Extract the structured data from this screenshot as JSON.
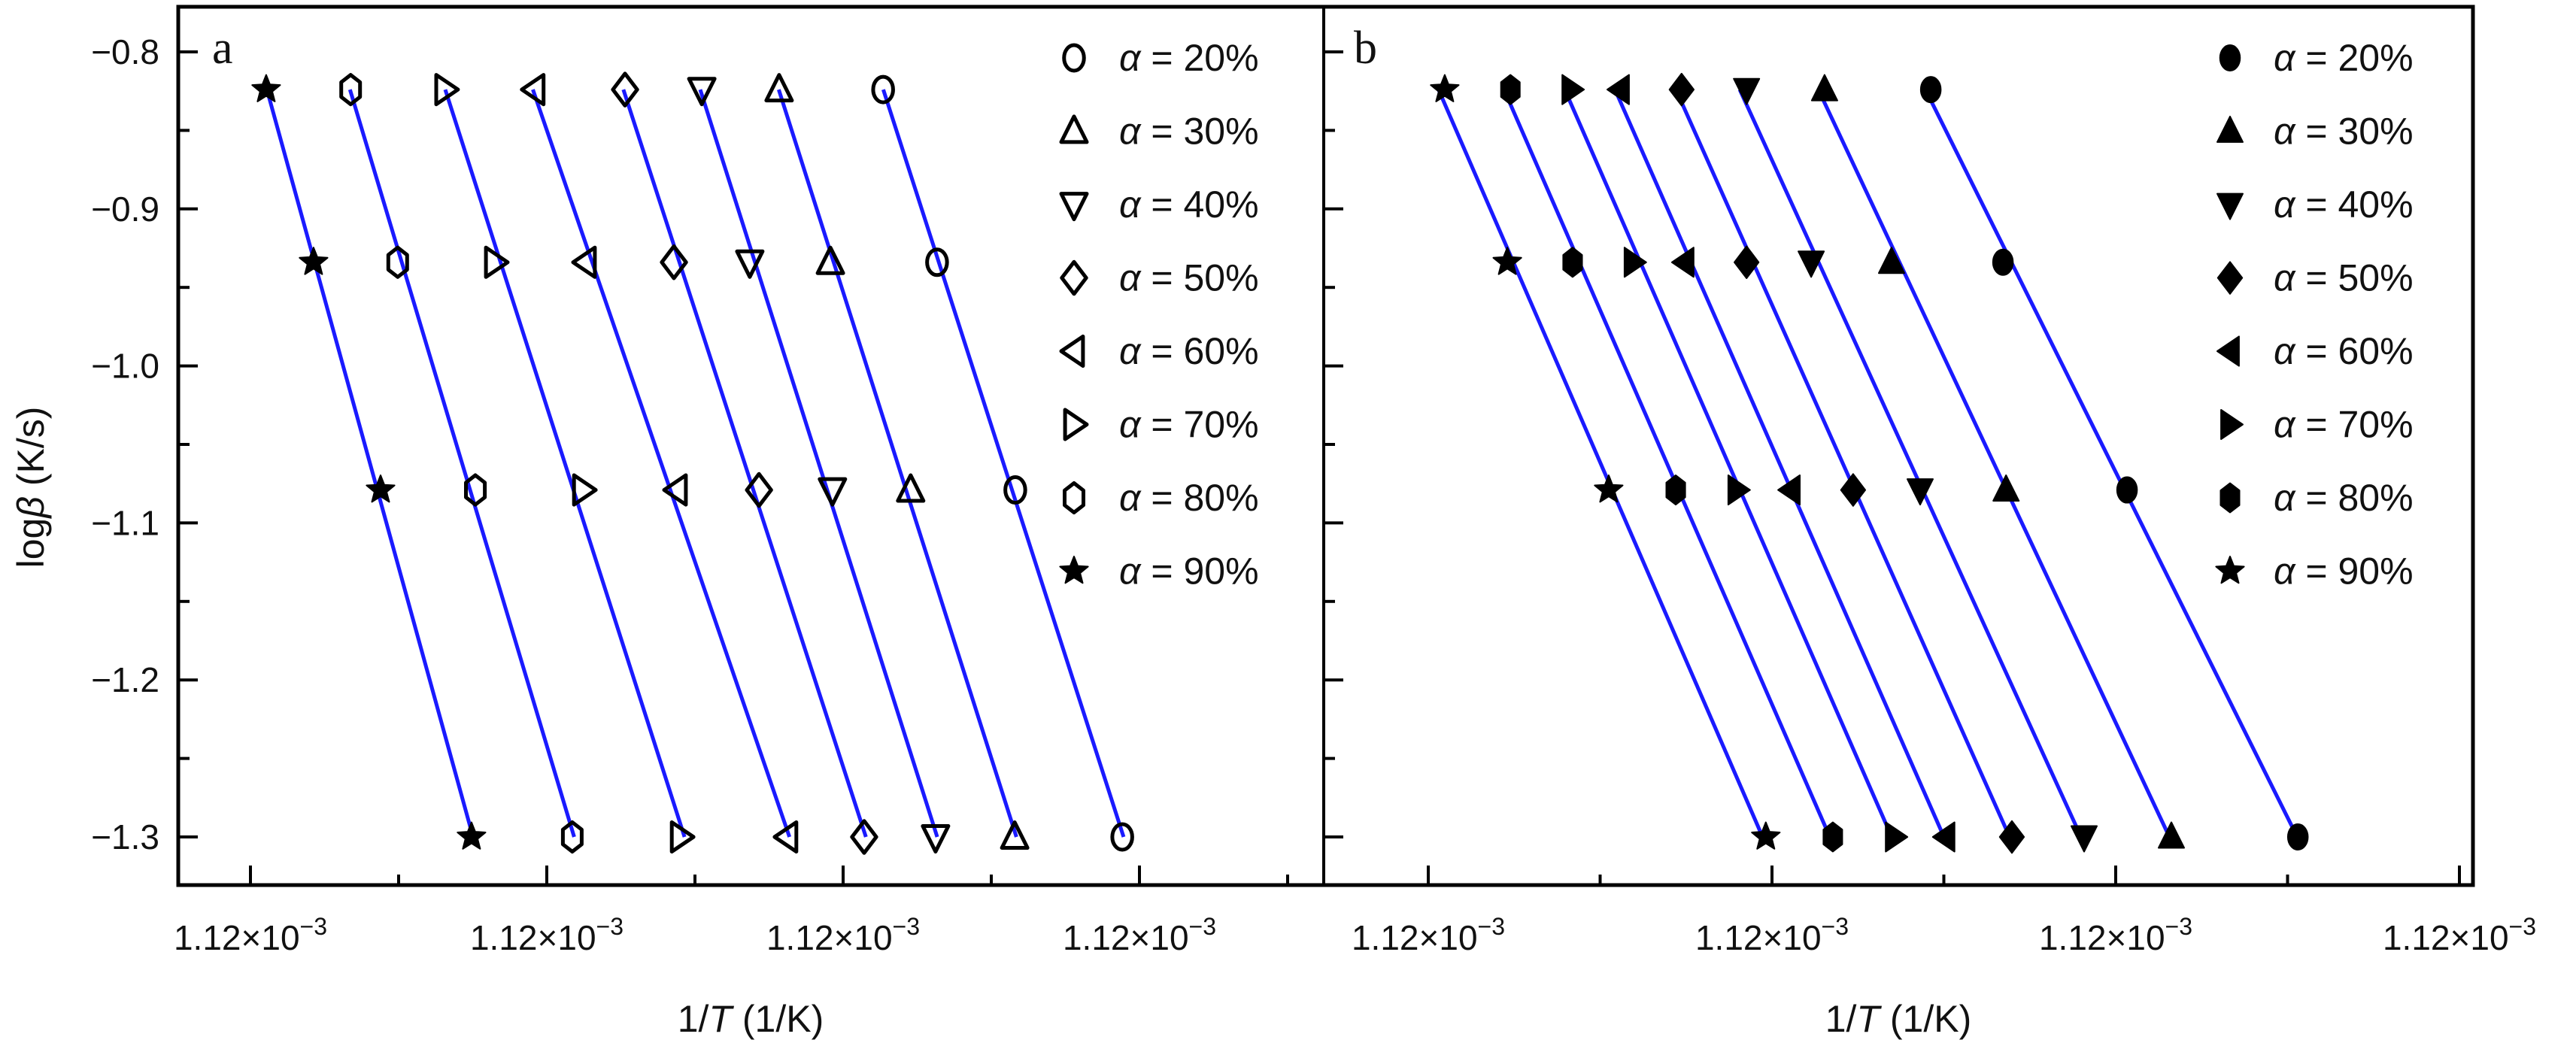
{
  "figure": {
    "y_axis_title_main": "log",
    "y_axis_title_symbol": "β",
    "y_axis_title_unit": " (K/s)",
    "x_axis_title_pre": "1/",
    "x_axis_title_symbol": "T",
    "x_axis_title_post": " (1/K)",
    "line_color": "#1a1aff",
    "marker_color": "#000000"
  },
  "chart_data": [
    {
      "type": "scatter",
      "panel": "a",
      "title": "",
      "panel_label": "a",
      "xlabel": "1/T (1/K)",
      "ylabel": "logβ (K/s)",
      "x_tick_labels": [
        "1.12×10⁻³",
        "1.12×10⁻³",
        "1.12×10⁻³",
        "1.12×10⁻³"
      ],
      "x_tick_positions": [
        0,
        1,
        2,
        3
      ],
      "x_units_note": "x values in tick-index units (tick labels are all 1.12×10⁻³)",
      "xlim": [
        -0.245,
        3.62
      ],
      "y_tick_labels": [
        "−0.8",
        "−0.9",
        "−1.0",
        "−1.1",
        "−1.2",
        "−1.3"
      ],
      "y_ticks": [
        -0.8,
        -0.9,
        -1.0,
        -1.1,
        -1.2,
        -1.3
      ],
      "ylim": [
        -1.33,
        -0.771
      ],
      "grid": false,
      "legend_position": "upper right",
      "marker_fill": "open",
      "series": [
        {
          "name": "α = 20%",
          "marker": "circle",
          "x": [
            2.135,
            2.317,
            2.581,
            2.942
          ],
          "y": [
            -0.824,
            -0.934,
            -1.079,
            -1.3
          ]
        },
        {
          "name": "α = 30%",
          "marker": "triangle-up",
          "x": [
            1.784,
            1.957,
            2.228,
            2.579
          ],
          "y": [
            -0.824,
            -0.934,
            -1.079,
            -1.3
          ]
        },
        {
          "name": "α = 40%",
          "marker": "triangle-down",
          "x": [
            1.523,
            1.685,
            1.964,
            2.312
          ],
          "y": [
            -0.824,
            -0.934,
            -1.079,
            -1.3
          ]
        },
        {
          "name": "α = 50%",
          "marker": "diamond",
          "x": [
            1.264,
            1.429,
            1.716,
            2.071
          ],
          "y": [
            -0.824,
            -0.934,
            -1.079,
            -1.3
          ]
        },
        {
          "name": "α = 60%",
          "marker": "triangle-left",
          "x": [
            0.959,
            1.132,
            1.439,
            1.812
          ],
          "y": [
            -0.824,
            -0.934,
            -1.079,
            -1.3
          ]
        },
        {
          "name": "α = 70%",
          "marker": "triangle-right",
          "x": [
            0.657,
            0.825,
            1.122,
            1.452
          ],
          "y": [
            -0.824,
            -0.934,
            -1.079,
            -1.3
          ]
        },
        {
          "name": "α = 80%",
          "marker": "hexagon",
          "x": [
            0.338,
            0.497,
            0.759,
            1.086
          ],
          "y": [
            -0.824,
            -0.934,
            -1.079,
            -1.3
          ]
        },
        {
          "name": "α = 90%",
          "marker": "star",
          "x": [
            0.053,
            0.213,
            0.439,
            0.746
          ],
          "y": [
            -0.824,
            -0.934,
            -1.079,
            -1.3
          ]
        }
      ]
    },
    {
      "type": "scatter",
      "panel": "b",
      "title": "",
      "panel_label": "b",
      "xlabel": "1/T (1/K)",
      "ylabel": "logβ (K/s)",
      "x_tick_labels": [
        "1.12×10⁻³",
        "1.12×10⁻³",
        "1.12×10⁻³",
        "1.12×10⁻³"
      ],
      "x_tick_positions": [
        0,
        1,
        2,
        3
      ],
      "x_units_note": "x values in tick-index units (tick labels are all 1.12×10⁻³)",
      "xlim": [
        -0.306,
        3.04
      ],
      "y_ticks": [
        -0.8,
        -0.9,
        -1.0,
        -1.1,
        -1.2,
        -1.3
      ],
      "ylim": [
        -1.33,
        -0.771
      ],
      "grid": false,
      "legend_position": "upper right",
      "marker_fill": "filled",
      "series": [
        {
          "name": "α = 20%",
          "marker": "circle",
          "x": [
            1.462,
            1.672,
            2.033,
            2.53
          ],
          "y": [
            -0.824,
            -0.934,
            -1.079,
            -1.3
          ]
        },
        {
          "name": "α = 30%",
          "marker": "triangle-up",
          "x": [
            1.153,
            1.348,
            1.681,
            2.162
          ],
          "y": [
            -0.824,
            -0.934,
            -1.079,
            -1.3
          ]
        },
        {
          "name": "α = 40%",
          "marker": "triangle-down",
          "x": [
            0.926,
            1.114,
            1.431,
            1.908
          ],
          "y": [
            -0.824,
            -0.934,
            -1.079,
            -1.3
          ]
        },
        {
          "name": "α = 50%",
          "marker": "diamond",
          "x": [
            0.737,
            0.926,
            1.236,
            1.698
          ],
          "y": [
            -0.824,
            -0.934,
            -1.079,
            -1.3
          ]
        },
        {
          "name": "α = 60%",
          "marker": "triangle-left",
          "x": [
            0.558,
            0.746,
            1.055,
            1.505
          ],
          "y": [
            -0.824,
            -0.934,
            -1.079,
            -1.3
          ]
        },
        {
          "name": "α = 70%",
          "marker": "triangle-right",
          "x": [
            0.416,
            0.597,
            0.899,
            1.357
          ],
          "y": [
            -0.824,
            -0.934,
            -1.079,
            -1.3
          ]
        },
        {
          "name": "α = 80%",
          "marker": "hexagon",
          "x": [
            0.239,
            0.42,
            0.72,
            1.177
          ],
          "y": [
            -0.824,
            -0.934,
            -1.079,
            -1.3
          ]
        },
        {
          "name": "α = 90%",
          "marker": "star",
          "x": [
            0.048,
            0.23,
            0.525,
            0.982
          ],
          "y": [
            -0.824,
            -0.934,
            -1.079,
            -1.3
          ]
        }
      ]
    }
  ]
}
